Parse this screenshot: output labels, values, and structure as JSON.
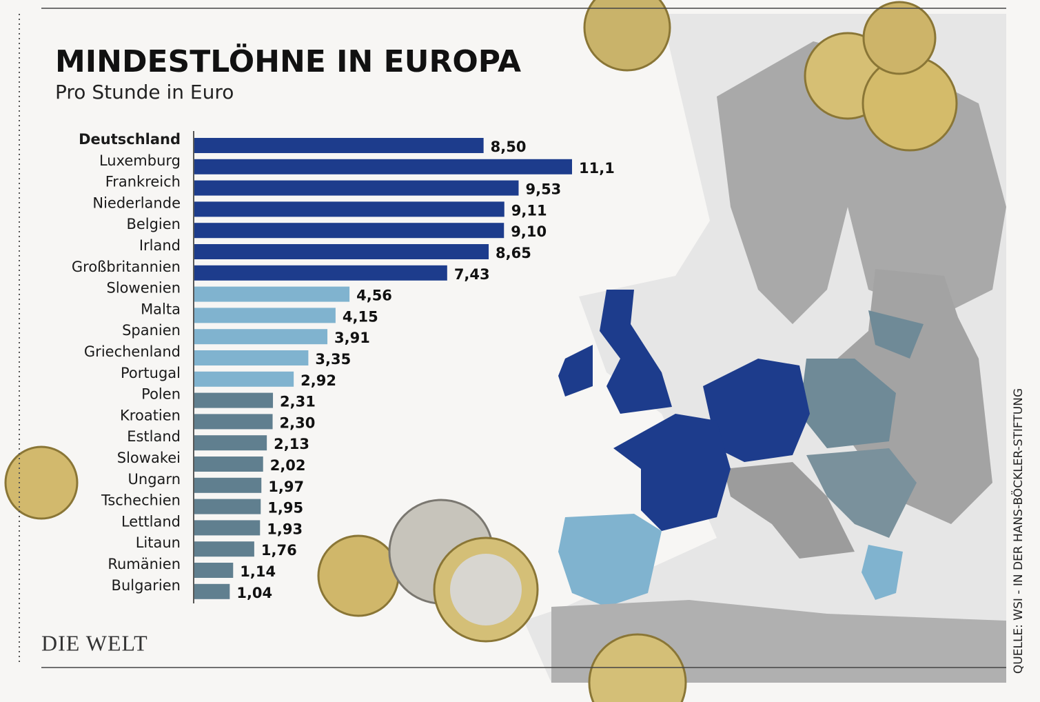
{
  "chart_data": {
    "type": "bar",
    "orientation": "horizontal",
    "title": "MINDESTLÖHNE IN EUROPA",
    "subtitle": "Pro Stunde in Euro",
    "categories": [
      "Deutschland",
      "Luxemburg",
      "Frankreich",
      "Niederlande",
      "Belgien",
      "Irland",
      "Großbritannien",
      "Slowenien",
      "Malta",
      "Spanien",
      "Griechenland",
      "Portugal",
      "Polen",
      "Kroatien",
      "Estland",
      "Slowakei",
      "Ungarn",
      "Tschechien",
      "Lettland",
      "Litaun",
      "Rumänien",
      "Bulgarien"
    ],
    "values": [
      8.5,
      11.1,
      9.53,
      9.11,
      9.1,
      8.65,
      7.43,
      4.56,
      4.15,
      3.91,
      3.35,
      2.92,
      2.31,
      2.3,
      2.13,
      2.02,
      1.97,
      1.95,
      1.93,
      1.76,
      1.14,
      1.04
    ],
    "value_labels": [
      "8,50",
      "11,1",
      "9,53",
      "9,11",
      "9,10",
      "8,65",
      "7,43",
      "4,56",
      "4,15",
      "3,91",
      "3,35",
      "2,92",
      "2,31",
      "2,30",
      "2,13",
      "2,02",
      "1,97",
      "1,95",
      "1,93",
      "1,76",
      "1,14",
      "1,04"
    ],
    "colors": [
      "#1d3c8c",
      "#1d3c8c",
      "#1d3c8c",
      "#1d3c8c",
      "#1d3c8c",
      "#1d3c8c",
      "#1d3c8c",
      "#80b3cf",
      "#80b3cf",
      "#80b3cf",
      "#80b3cf",
      "#80b3cf",
      "#607f8f",
      "#607f8f",
      "#607f8f",
      "#607f8f",
      "#607f8f",
      "#607f8f",
      "#607f8f",
      "#607f8f",
      "#607f8f",
      "#607f8f"
    ],
    "source": "QUELLE: WSI - IN DER HANS-BÖCKLER-STIFTUNG",
    "publisher": "DIE WELT"
  }
}
